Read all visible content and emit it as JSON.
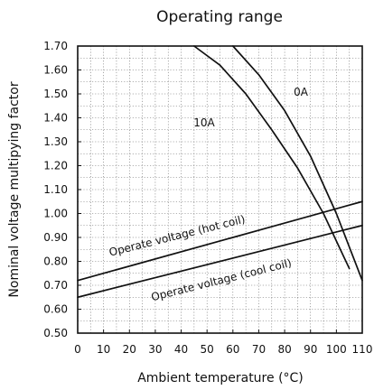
{
  "chart_data": {
    "type": "line",
    "title": "Operating range",
    "xlabel": "Ambient temperature (°C)",
    "ylabel": "Nominal voltage multipying factor",
    "xlim": [
      0,
      110
    ],
    "ylim": [
      0.5,
      1.7
    ],
    "x_ticks": [
      0,
      10,
      20,
      30,
      40,
      50,
      60,
      70,
      80,
      90,
      100,
      110
    ],
    "y_ticks": [
      "0.50",
      "0.60",
      "0.70",
      "0.80",
      "0.90",
      "1.00",
      "1.10",
      "1.20",
      "1.30",
      "1.40",
      "1.50",
      "1.60",
      "1.70"
    ],
    "grid": true,
    "series": [
      {
        "name": "0A",
        "x": [
          60,
          70,
          80,
          90,
          100,
          110
        ],
        "y": [
          1.7,
          1.58,
          1.43,
          1.24,
          1.0,
          0.72
        ]
      },
      {
        "name": "10A",
        "x": [
          45,
          55,
          65,
          75,
          85,
          95,
          105
        ],
        "y": [
          1.7,
          1.62,
          1.5,
          1.35,
          1.19,
          1.0,
          0.77
        ]
      },
      {
        "name": "Operate voltage (hot coil)",
        "x": [
          0,
          110
        ],
        "y": [
          0.72,
          1.05
        ]
      },
      {
        "name": "Operate voltage (cool coil)",
        "x": [
          0,
          110
        ],
        "y": [
          0.65,
          0.95
        ]
      }
    ]
  }
}
